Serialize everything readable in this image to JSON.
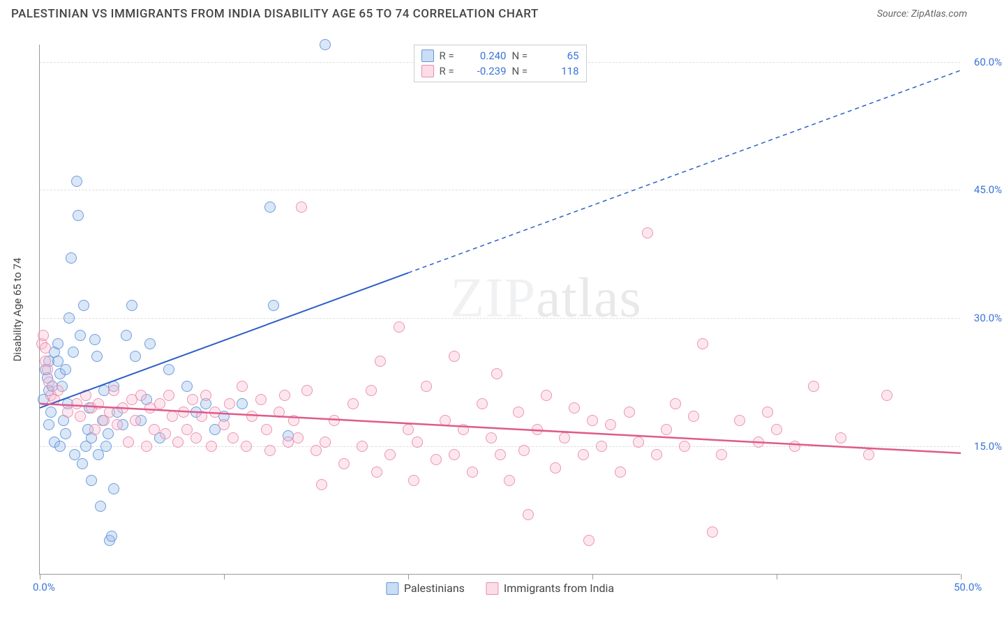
{
  "header": {
    "title": "PALESTINIAN VS IMMIGRANTS FROM INDIA DISABILITY AGE 65 TO 74 CORRELATION CHART",
    "source": "Source: ZipAtlas.com"
  },
  "chart": {
    "type": "scatter",
    "ylabel": "Disability Age 65 to 74",
    "xlim": [
      0,
      50
    ],
    "ylim": [
      0,
      62
    ],
    "x_ticks": [
      0,
      10,
      20,
      30,
      40,
      50
    ],
    "x_tick_labels": [
      "0.0%",
      "",
      "",
      "",
      "",
      "50.0%"
    ],
    "y_ticks": [
      15,
      30,
      45,
      60
    ],
    "y_tick_labels": [
      "15.0%",
      "30.0%",
      "45.0%",
      "60.0%"
    ],
    "grid_color": "#dddddd",
    "axis_color": "#999999",
    "background_color": "#ffffff",
    "y_label_color": "#3a74d8",
    "watermark": "ZIPatlas",
    "series": [
      {
        "name": "Palestinians",
        "label": "Palestinians",
        "marker_fill": "rgba(148,187,233,0.35)",
        "marker_stroke": "#6496dc",
        "marker_size": 16,
        "trend_color": "#2c5fc4",
        "trend_width": 2,
        "R": "0.240",
        "N": "65",
        "trend": {
          "x1": 0,
          "y1": 19.5,
          "x2": 50,
          "y2": 59,
          "x_solid_end": 20
        },
        "points": [
          [
            0.2,
            20.5
          ],
          [
            0.3,
            24
          ],
          [
            0.4,
            23
          ],
          [
            0.5,
            25
          ],
          [
            0.5,
            21.5
          ],
          [
            0.6,
            19
          ],
          [
            0.7,
            22
          ],
          [
            0.8,
            26
          ],
          [
            1.0,
            27
          ],
          [
            1.0,
            25
          ],
          [
            1.1,
            23.5
          ],
          [
            1.2,
            22
          ],
          [
            1.3,
            18
          ],
          [
            1.4,
            24
          ],
          [
            1.5,
            20
          ],
          [
            1.6,
            30
          ],
          [
            1.7,
            37
          ],
          [
            1.8,
            26
          ],
          [
            2.0,
            46
          ],
          [
            2.1,
            42
          ],
          [
            2.2,
            28
          ],
          [
            2.4,
            31.5
          ],
          [
            2.5,
            15
          ],
          [
            2.6,
            17
          ],
          [
            2.7,
            19.5
          ],
          [
            2.8,
            11
          ],
          [
            3.0,
            27.5
          ],
          [
            3.1,
            25.5
          ],
          [
            3.2,
            14
          ],
          [
            3.3,
            8
          ],
          [
            3.4,
            18
          ],
          [
            3.5,
            21.5
          ],
          [
            3.7,
            16.5
          ],
          [
            3.8,
            4
          ],
          [
            3.9,
            4.5
          ],
          [
            4.0,
            10
          ],
          [
            4.0,
            22
          ],
          [
            4.2,
            19
          ],
          [
            4.5,
            17.5
          ],
          [
            4.7,
            28
          ],
          [
            5.0,
            31.5
          ],
          [
            5.2,
            25.5
          ],
          [
            5.5,
            18
          ],
          [
            5.8,
            20.5
          ],
          [
            6.0,
            27
          ],
          [
            6.5,
            16
          ],
          [
            7.0,
            24
          ],
          [
            8.0,
            22
          ],
          [
            8.5,
            19
          ],
          [
            9.0,
            20
          ],
          [
            9.5,
            17
          ],
          [
            10.0,
            18.5
          ],
          [
            11.0,
            20
          ],
          [
            12.5,
            43
          ],
          [
            12.7,
            31.5
          ],
          [
            13.5,
            16.2
          ],
          [
            15.5,
            62
          ],
          [
            0.5,
            17.5
          ],
          [
            0.8,
            15.5
          ],
          [
            1.1,
            15
          ],
          [
            1.4,
            16.5
          ],
          [
            1.9,
            14
          ],
          [
            2.3,
            13
          ],
          [
            2.8,
            16
          ],
          [
            3.6,
            15
          ]
        ]
      },
      {
        "name": "Immigrants from India",
        "label": "Immigrants from India",
        "marker_fill": "rgba(248,187,208,0.35)",
        "marker_stroke": "#eb8caa",
        "marker_size": 16,
        "trend_color": "#e05a8a",
        "trend_width": 2.5,
        "R": "-0.239",
        "N": "118",
        "trend": {
          "x1": 0,
          "y1": 20,
          "x2": 50,
          "y2": 14.2,
          "x_solid_end": 50
        },
        "points": [
          [
            0.1,
            27
          ],
          [
            0.2,
            28
          ],
          [
            0.3,
            26.5
          ],
          [
            0.3,
            25
          ],
          [
            0.4,
            24
          ],
          [
            0.5,
            22.5
          ],
          [
            0.6,
            21
          ],
          [
            0.8,
            20.5
          ],
          [
            1.0,
            21.5
          ],
          [
            1.5,
            19
          ],
          [
            2.0,
            20
          ],
          [
            2.2,
            18.5
          ],
          [
            2.5,
            21
          ],
          [
            2.8,
            19.5
          ],
          [
            3.0,
            17
          ],
          [
            3.2,
            20
          ],
          [
            3.5,
            18
          ],
          [
            3.8,
            19
          ],
          [
            4.0,
            21.5
          ],
          [
            4.2,
            17.5
          ],
          [
            4.5,
            19.5
          ],
          [
            4.8,
            15.5
          ],
          [
            5.0,
            20.5
          ],
          [
            5.2,
            18
          ],
          [
            5.5,
            21
          ],
          [
            5.8,
            15
          ],
          [
            6.0,
            19.5
          ],
          [
            6.2,
            17
          ],
          [
            6.5,
            20
          ],
          [
            6.8,
            16.5
          ],
          [
            7.0,
            21
          ],
          [
            7.2,
            18.5
          ],
          [
            7.5,
            15.5
          ],
          [
            7.8,
            19
          ],
          [
            8.0,
            17
          ],
          [
            8.3,
            20.5
          ],
          [
            8.5,
            16
          ],
          [
            8.8,
            18.5
          ],
          [
            9.0,
            21
          ],
          [
            9.3,
            15
          ],
          [
            9.5,
            19
          ],
          [
            10.0,
            17.5
          ],
          [
            10.3,
            20
          ],
          [
            10.5,
            16
          ],
          [
            11.0,
            22
          ],
          [
            11.2,
            15
          ],
          [
            11.5,
            18.5
          ],
          [
            12.0,
            20.5
          ],
          [
            12.3,
            17
          ],
          [
            12.5,
            14.5
          ],
          [
            13.0,
            19
          ],
          [
            13.3,
            21
          ],
          [
            13.5,
            15.5
          ],
          [
            13.8,
            18
          ],
          [
            14.0,
            16
          ],
          [
            14.2,
            43
          ],
          [
            14.5,
            21.5
          ],
          [
            15.0,
            14.5
          ],
          [
            15.3,
            10.5
          ],
          [
            15.5,
            15.5
          ],
          [
            16.0,
            18
          ],
          [
            16.5,
            13
          ],
          [
            17.0,
            20
          ],
          [
            17.5,
            15
          ],
          [
            18.0,
            21.5
          ],
          [
            18.3,
            12
          ],
          [
            18.5,
            25
          ],
          [
            19.0,
            14
          ],
          [
            19.5,
            29
          ],
          [
            20.0,
            17
          ],
          [
            20.3,
            11
          ],
          [
            20.5,
            15.5
          ],
          [
            21.0,
            22
          ],
          [
            21.5,
            13.5
          ],
          [
            22.0,
            18
          ],
          [
            22.5,
            25.5
          ],
          [
            22.5,
            14
          ],
          [
            23.0,
            17
          ],
          [
            23.5,
            12
          ],
          [
            24.0,
            20
          ],
          [
            24.5,
            16
          ],
          [
            24.8,
            23.5
          ],
          [
            25.0,
            14
          ],
          [
            25.5,
            11
          ],
          [
            26.0,
            19
          ],
          [
            26.3,
            14.5
          ],
          [
            26.5,
            7
          ],
          [
            27.0,
            17
          ],
          [
            27.5,
            21
          ],
          [
            28.0,
            12.5
          ],
          [
            28.5,
            16
          ],
          [
            29.0,
            19.5
          ],
          [
            29.5,
            14
          ],
          [
            29.8,
            4
          ],
          [
            30.0,
            18
          ],
          [
            30.5,
            15
          ],
          [
            31.0,
            17.5
          ],
          [
            31.5,
            12
          ],
          [
            32.0,
            19
          ],
          [
            32.5,
            15.5
          ],
          [
            33.0,
            40
          ],
          [
            33.5,
            14
          ],
          [
            34.0,
            17
          ],
          [
            34.5,
            20
          ],
          [
            35.0,
            15
          ],
          [
            35.5,
            18.5
          ],
          [
            36.0,
            27
          ],
          [
            36.5,
            5
          ],
          [
            37.0,
            14
          ],
          [
            38.0,
            18
          ],
          [
            39.0,
            15.5
          ],
          [
            39.5,
            19
          ],
          [
            40.0,
            17
          ],
          [
            41.0,
            15
          ],
          [
            42.0,
            22
          ],
          [
            43.5,
            16
          ],
          [
            45.0,
            14
          ],
          [
            46.0,
            21
          ]
        ]
      }
    ]
  },
  "legend_top": {
    "rows": [
      {
        "swatch": "blue",
        "r_label": "R =",
        "r_val": "0.240",
        "n_label": "N =",
        "n_val": "65"
      },
      {
        "swatch": "pink",
        "r_label": "R =",
        "r_val": "-0.239",
        "n_label": "N =",
        "n_val": "118"
      }
    ]
  },
  "legend_bottom": {
    "items": [
      {
        "swatch": "blue",
        "label": "Palestinians"
      },
      {
        "swatch": "pink",
        "label": "Immigrants from India"
      }
    ]
  }
}
